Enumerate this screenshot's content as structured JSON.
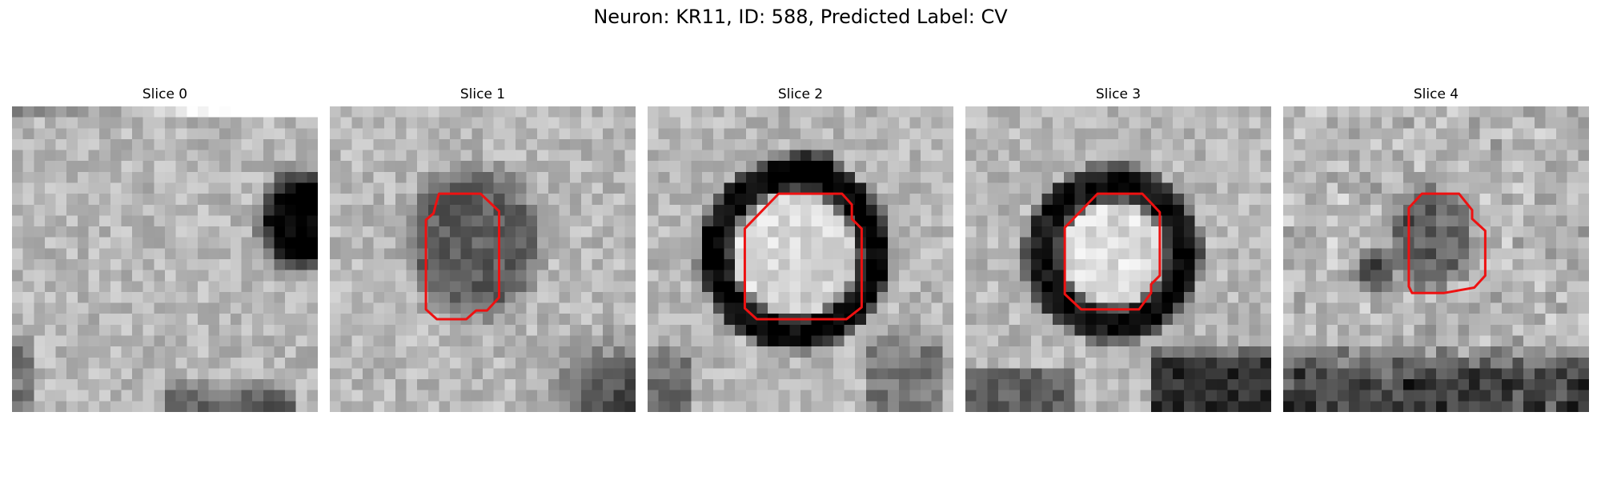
{
  "figure": {
    "title": "Neuron: KR11, ID: 588, Predicted Label: CV"
  },
  "colors": {
    "contour": "#ee1111",
    "background": "#ffffff"
  },
  "colormap": "grayscale",
  "grid_size": 28,
  "slices": [
    {
      "label": "Slice 0",
      "contour_visible": false
    },
    {
      "label": "Slice 1",
      "contour_visible": true
    },
    {
      "label": "Slice 2",
      "contour_visible": true
    },
    {
      "label": "Slice 3",
      "contour_visible": true
    },
    {
      "label": "Slice 4",
      "contour_visible": true
    }
  ]
}
